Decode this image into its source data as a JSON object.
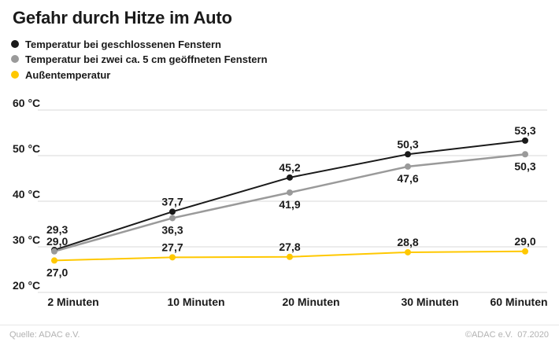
{
  "title": "Gefahr durch Hitze im Auto",
  "chart_data": {
    "type": "line",
    "title": "Gefahr durch Hitze im Auto",
    "categories": [
      "2 Minuten",
      "10 Minuten",
      "20 Minuten",
      "30 Minuten",
      "60 Minuten"
    ],
    "series": [
      {
        "name": "Temperatur bei geschlossenen Fenstern",
        "color": "#1a1a1a",
        "values": [
          29.3,
          37.7,
          45.2,
          50.3,
          53.3
        ]
      },
      {
        "name": "Temperatur bei zwei ca. 5 cm geöffneten Fenstern",
        "color": "#9a9a9a",
        "values": [
          29.0,
          36.3,
          41.9,
          47.6,
          50.3
        ]
      },
      {
        "name": "Außentemperatur",
        "color": "#ffc800",
        "values": [
          27.0,
          27.7,
          27.8,
          28.8,
          29.0
        ]
      }
    ],
    "y_axis": {
      "tick_labels": [
        "60 °C",
        "50 °C",
        "40 °C",
        "30 °C",
        "20 °C"
      ],
      "tick_values": [
        60,
        50,
        40,
        30,
        20
      ],
      "min": 20,
      "max": 60,
      "unit": "°C"
    },
    "grid": true,
    "grid_color": "#d9d9d9",
    "legend_position": "top-left",
    "value_label_decimal_separator": ","
  },
  "footer": {
    "source": "Quelle: ADAC e.V.",
    "copyright": "©ADAC e.V.  07.2020"
  }
}
